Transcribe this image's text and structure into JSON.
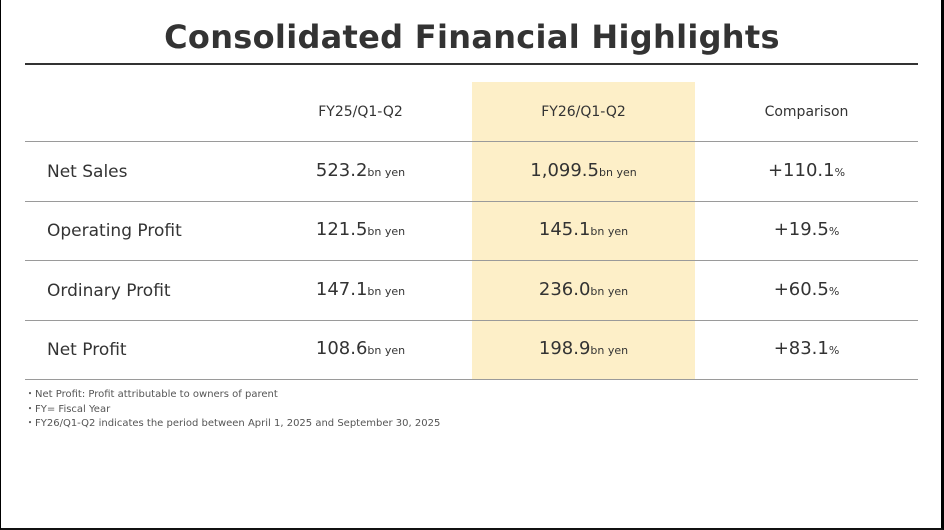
{
  "title": "Consolidated Financial Highlights",
  "columns": [
    "FY25/Q1-Q2",
    "FY26/Q1-Q2",
    "Comparison"
  ],
  "rows": [
    {
      "label": "Net Sales",
      "fy25": "523.2",
      "fy26": "1,099.5",
      "comparison": "+110.1"
    },
    {
      "label": "Operating Profit",
      "fy25": "121.5",
      "fy26": "145.1",
      "comparison": "+19.5"
    },
    {
      "label": "Ordinary Profit",
      "fy25": "147.1",
      "fy26": "236.0",
      "comparison": "+60.5"
    },
    {
      "label": "Net Profit",
      "fy25": "108.6",
      "fy26": "198.9",
      "comparison": "+83.1"
    }
  ],
  "unit": "bn yen",
  "percent": "%",
  "notes": [
    "・Net Profit: Profit attributable to owners of parent",
    "・FY= Fiscal Year",
    "・FY26/Q1-Q2 indicates the period between April 1, 2025 and September 30, 2025"
  ],
  "colors": {
    "highlight": "#fdefc8",
    "text": "#333333"
  }
}
